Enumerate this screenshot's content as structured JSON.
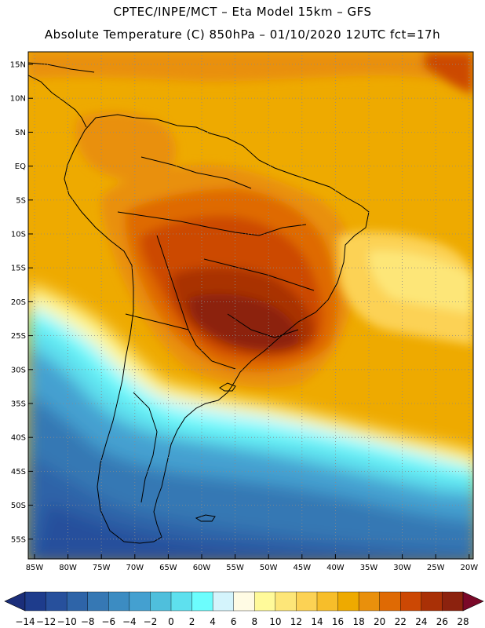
{
  "header": {
    "line1": "CPTEC/INPE/MCT –  Eta Model 15km – GFS",
    "line2": "Absolute Temperature (C) 850hPa – 01/10/2020 12UTC fct=17h"
  },
  "map": {
    "lat_labels": [
      "15N",
      "10N",
      "5N",
      "EQ",
      "5S",
      "10S",
      "15S",
      "20S",
      "25S",
      "30S",
      "35S",
      "40S",
      "45S",
      "50S",
      "55S"
    ],
    "lon_labels": [
      "85W",
      "80W",
      "75W",
      "70W",
      "65W",
      "60W",
      "55W",
      "50W",
      "45W",
      "40W",
      "35W",
      "30W",
      "25W",
      "20W"
    ]
  },
  "colorbar": {
    "labels": [
      "-14",
      "-12",
      "-10",
      "-8",
      "-6",
      "-4",
      "-2",
      "0",
      "2",
      "4",
      "6",
      "8",
      "10",
      "12",
      "14",
      "16",
      "18",
      "20",
      "22",
      "24",
      "26",
      "28"
    ],
    "colors": [
      "#1e3c8c",
      "#27509c",
      "#2e64a8",
      "#3678b4",
      "#3c8cc2",
      "#44a0d0",
      "#4fbfdc",
      "#5ee0ee",
      "#6cfdfd",
      "#d4f4fc",
      "#fffbe4",
      "#fffa9a",
      "#fde678",
      "#fcd254",
      "#f7be2a",
      "#eeaa00",
      "#e9900c",
      "#df6a04",
      "#cc4804",
      "#a93006",
      "#8c220e"
    ],
    "under_color": "#1b2e7a",
    "over_color": "#7a0828"
  }
}
